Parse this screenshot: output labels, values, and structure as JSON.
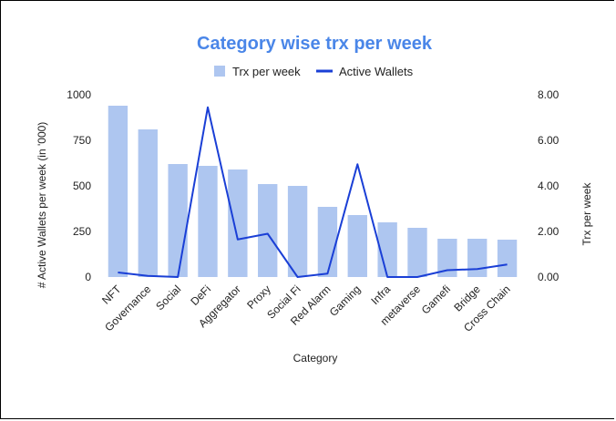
{
  "chart_data": {
    "type": "bar",
    "title": "Category wise trx per week",
    "xlabel": "Category",
    "ylabel_left": "# Active Wallets per week (in '000)",
    "ylabel_right": "Trx per week",
    "legend_placement": "top",
    "categories": [
      "NFT",
      "Governance",
      "Social",
      "DeFi",
      "Aggregator",
      "Proxy",
      "Social Fi",
      "Red Alarm",
      "Gaming",
      "Infra",
      "metaverse",
      "Gamefi",
      "Bridge",
      "Cross Chain"
    ],
    "series": [
      {
        "name": "Trx per week",
        "type": "bar",
        "axis": "left",
        "color": "#aec6f0",
        "values": [
          940,
          810,
          620,
          610,
          590,
          510,
          500,
          385,
          340,
          300,
          270,
          210,
          210,
          205
        ]
      },
      {
        "name": "Active Wallets",
        "type": "line",
        "axis": "right",
        "color": "#1a3fd6",
        "values": [
          0.2,
          0.05,
          0.0,
          7.45,
          1.65,
          1.9,
          0.0,
          0.15,
          4.95,
          0.0,
          0.0,
          0.3,
          0.35,
          0.55
        ]
      }
    ],
    "ylim_left": [
      0,
      1000
    ],
    "yticks_left": [
      "0",
      "250",
      "500",
      "750",
      "1000"
    ],
    "ylim_right": [
      0,
      8
    ],
    "yticks_right": [
      "0.00",
      "2.00",
      "4.00",
      "6.00",
      "8.00"
    ],
    "grid": false
  }
}
